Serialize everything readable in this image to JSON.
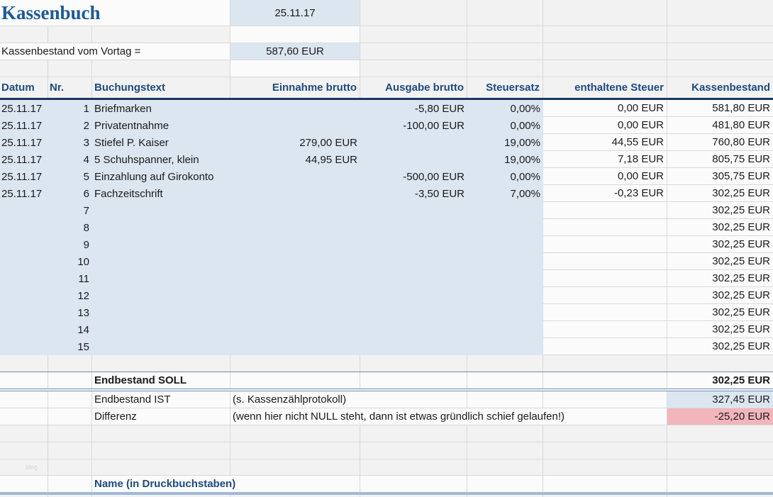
{
  "meta": {
    "title": "Kassenbuch",
    "date": "25.11.17"
  },
  "vortag": {
    "label": "Kassenbestand vom Vortag =",
    "value": "587,60 EUR"
  },
  "table": {
    "headers": {
      "datum": "Datum",
      "nr": "Nr.",
      "text": "Buchungstext",
      "einnahme": "Einnahme brutto",
      "ausgabe": "Ausgabe brutto",
      "steuersatz": "Steuersatz",
      "steuer": "enthaltene Steuer",
      "bestand": "Kassenbestand"
    },
    "rows": [
      {
        "datum": "25.11.17",
        "nr": "1",
        "text": "Briefmarken",
        "einnahme": "",
        "ausgabe": "-5,80 EUR",
        "steuersatz": "0,00%",
        "steuer": "0,00 EUR",
        "bestand": "581,80 EUR"
      },
      {
        "datum": "25.11.17",
        "nr": "2",
        "text": "Privatentnahme",
        "einnahme": "",
        "ausgabe": "-100,00 EUR",
        "steuersatz": "0,00%",
        "steuer": "0,00 EUR",
        "bestand": "481,80 EUR"
      },
      {
        "datum": "25.11.17",
        "nr": "3",
        "text": "Stiefel P. Kaiser",
        "einnahme": "279,00 EUR",
        "ausgabe": "",
        "steuersatz": "19,00%",
        "steuer": "44,55 EUR",
        "bestand": "760,80 EUR"
      },
      {
        "datum": "25.11.17",
        "nr": "4",
        "text": "5 Schuhspanner, klein",
        "einnahme": "44,95 EUR",
        "ausgabe": "",
        "steuersatz": "19,00%",
        "steuer": "7,18 EUR",
        "bestand": "805,75 EUR"
      },
      {
        "datum": "25.11.17",
        "nr": "5",
        "text": "Einzahlung auf Girokonto",
        "einnahme": "",
        "ausgabe": "-500,00 EUR",
        "steuersatz": "0,00%",
        "steuer": "0,00 EUR",
        "bestand": "305,75 EUR"
      },
      {
        "datum": "25.11.17",
        "nr": "6",
        "text": "Fachzeitschrift",
        "einnahme": "",
        "ausgabe": "-3,50 EUR",
        "steuersatz": "7,00%",
        "steuer": "-0,23 EUR",
        "bestand": "302,25 EUR"
      },
      {
        "datum": "",
        "nr": "7",
        "text": "",
        "einnahme": "",
        "ausgabe": "",
        "steuersatz": "",
        "steuer": "",
        "bestand": "302,25 EUR"
      },
      {
        "datum": "",
        "nr": "8",
        "text": "",
        "einnahme": "",
        "ausgabe": "",
        "steuersatz": "",
        "steuer": "",
        "bestand": "302,25 EUR"
      },
      {
        "datum": "",
        "nr": "9",
        "text": "",
        "einnahme": "",
        "ausgabe": "",
        "steuersatz": "",
        "steuer": "",
        "bestand": "302,25 EUR"
      },
      {
        "datum": "",
        "nr": "10",
        "text": "",
        "einnahme": "",
        "ausgabe": "",
        "steuersatz": "",
        "steuer": "",
        "bestand": "302,25 EUR"
      },
      {
        "datum": "",
        "nr": "11",
        "text": "",
        "einnahme": "",
        "ausgabe": "",
        "steuersatz": "",
        "steuer": "",
        "bestand": "302,25 EUR"
      },
      {
        "datum": "",
        "nr": "12",
        "text": "",
        "einnahme": "",
        "ausgabe": "",
        "steuersatz": "",
        "steuer": "",
        "bestand": "302,25 EUR"
      },
      {
        "datum": "",
        "nr": "13",
        "text": "",
        "einnahme": "",
        "ausgabe": "",
        "steuersatz": "",
        "steuer": "",
        "bestand": "302,25 EUR"
      },
      {
        "datum": "",
        "nr": "14",
        "text": "",
        "einnahme": "",
        "ausgabe": "",
        "steuersatz": "",
        "steuer": "",
        "bestand": "302,25 EUR"
      },
      {
        "datum": "",
        "nr": "15",
        "text": "",
        "einnahme": "",
        "ausgabe": "",
        "steuersatz": "",
        "steuer": "",
        "bestand": "302,25 EUR"
      }
    ]
  },
  "summary": {
    "soll": {
      "label": "Endbestand SOLL",
      "value": "302,25 EUR"
    },
    "ist": {
      "label": "Endbestand IST",
      "note": "(s. Kassenzählprotokoll)",
      "value": "327,45 EUR"
    },
    "differenz": {
      "label": "Differenz",
      "note": "(wenn hier nicht NULL steht, dann ist etwas gründlich schief gelaufen!)",
      "value": "-25,20 EUR"
    }
  },
  "footer": {
    "name_label": "Name (in Druckbuchstaben)",
    "watermark": "blog"
  },
  "colors": {
    "header_rule": "#17375e",
    "header_text": "#1f497d",
    "title_text": "#1e5a96",
    "highlight_blue": "#dce6f1",
    "highlight_pink": "#f3b5bc",
    "total_rule": "#6b8cb4",
    "signature_rule": "#9fb9d9"
  }
}
